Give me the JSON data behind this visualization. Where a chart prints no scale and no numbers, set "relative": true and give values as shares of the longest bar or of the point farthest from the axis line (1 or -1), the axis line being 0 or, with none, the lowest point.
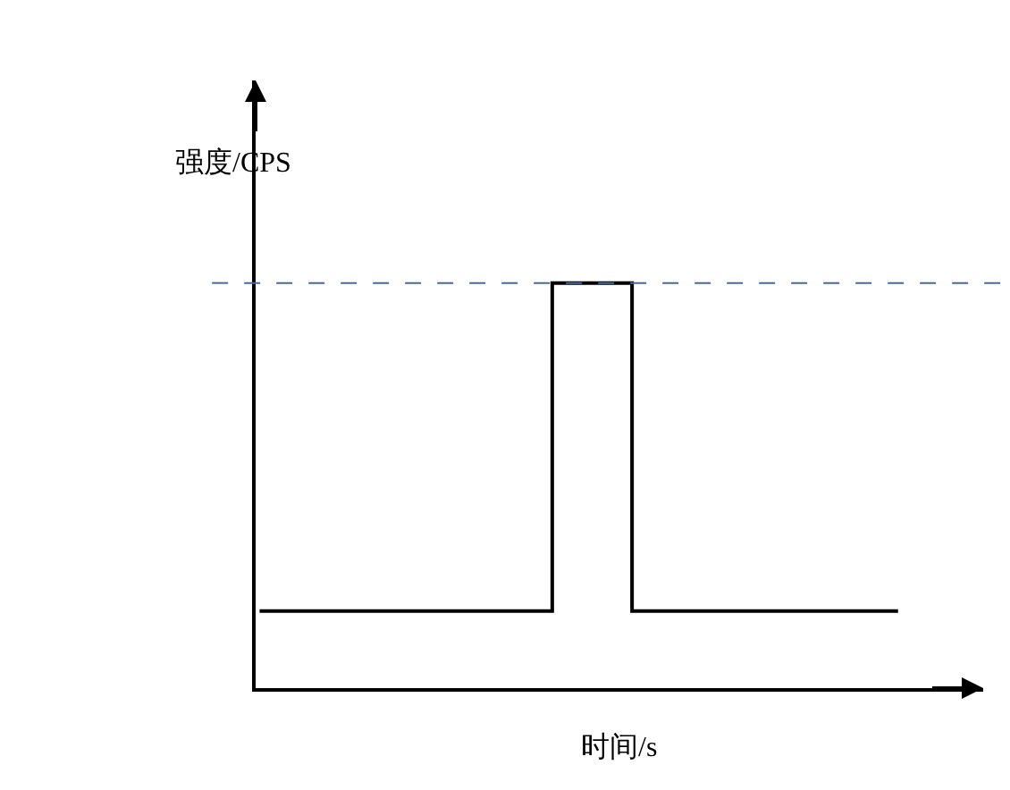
{
  "chart_data": {
    "type": "step",
    "relative": true,
    "xlabel": "时间/s",
    "ylabel": "强度/CPS",
    "categories": [
      null,
      null,
      null,
      null,
      null,
      null,
      null,
      null,
      null,
      null,
      null,
      null,
      null,
      null,
      null,
      null,
      null,
      null,
      null,
      null,
      null,
      null,
      null,
      null,
      null
    ],
    "series": [
      {
        "color": "#000000",
        "values": [
          0.19,
          0.19,
          0.19,
          0.19,
          0.19,
          0.19,
          0.19,
          0.19,
          0.19,
          0.19,
          0.19,
          1,
          1,
          1,
          0.19,
          0.19,
          0.19,
          0.19,
          0.19,
          0.19,
          0.19,
          0.19,
          0.19,
          0.19,
          0.19
        ]
      }
    ],
    "ref_lines": [
      {
        "axis": "y",
        "value": 1,
        "label": null,
        "color": "#4a6a9a",
        "line_style": "dashed"
      }
    ],
    "legend": false,
    "grid": false
  }
}
